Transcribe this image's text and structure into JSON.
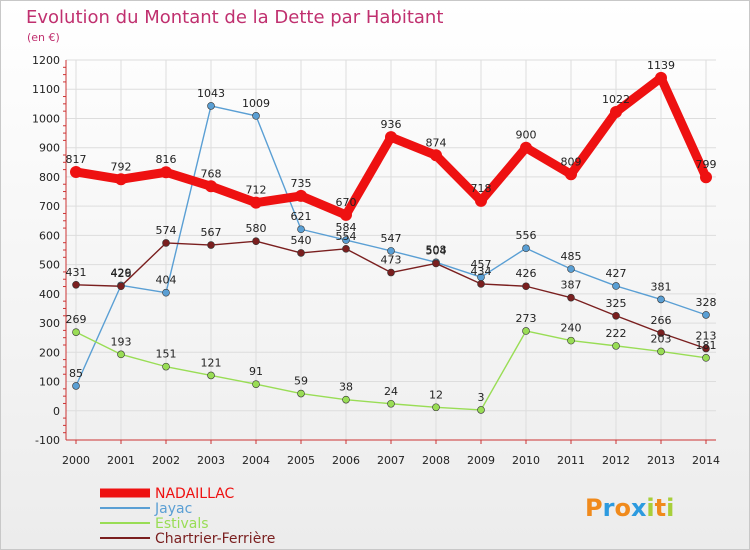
{
  "chart_data": {
    "type": "line",
    "title": "Evolution du Montant de la Dette par Habitant",
    "subtitle": "(en €)",
    "x": [
      "2000",
      "2001",
      "2002",
      "2003",
      "2004",
      "2005",
      "2006",
      "2007",
      "2008",
      "2009",
      "2010",
      "2011",
      "2012",
      "2013",
      "2014"
    ],
    "ylim": [
      -100,
      1200
    ],
    "yticks": [
      -100,
      0,
      100,
      200,
      300,
      400,
      500,
      600,
      700,
      800,
      900,
      1000,
      1100,
      1200
    ],
    "grid": true,
    "legend_position": "bottom-left",
    "series": [
      {
        "name": "NADAILLAC",
        "color": "#ee1111",
        "values": [
          817,
          792,
          816,
          768,
          712,
          735,
          670,
          936,
          874,
          718,
          900,
          809,
          1022,
          1139,
          799
        ]
      },
      {
        "name": "Jayac",
        "color": "#5a9fd4",
        "values": [
          85,
          429,
          404,
          1043,
          1009,
          621,
          584,
          547,
          508,
          457,
          556,
          485,
          427,
          381,
          328
        ]
      },
      {
        "name": "Estivals",
        "color": "#99dd55",
        "values": [
          269,
          193,
          151,
          121,
          91,
          59,
          38,
          24,
          12,
          3,
          273,
          240,
          222,
          203,
          181
        ]
      },
      {
        "name": "Chartrier-Ferrière",
        "color": "#7a1f1f",
        "values": [
          431,
          426,
          574,
          567,
          580,
          540,
          554,
          473,
          504,
          434,
          426,
          387,
          325,
          266,
          213
        ]
      }
    ]
  },
  "logo": {
    "letters": [
      "P",
      "r",
      "o",
      "x",
      "i",
      "t",
      "i"
    ],
    "colors": [
      "#f08a1c",
      "#2c9adf",
      "#f08a1c",
      "#2c9adf",
      "#a8cf3a",
      "#f08a1c",
      "#a8cf3a"
    ]
  }
}
